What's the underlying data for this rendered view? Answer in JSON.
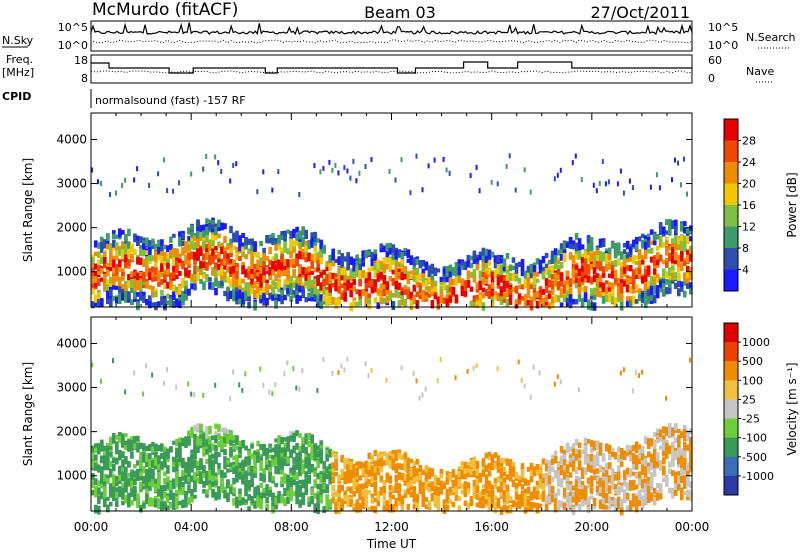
{
  "header": {
    "station": "McMurdo (fitACF)",
    "beam": "Beam 03",
    "date": "27/Oct/2011"
  },
  "summary": {
    "nsky_label": "N.Sky",
    "nsky_ticks": [
      "10^5",
      "10^0"
    ],
    "nsearch_label": "N.Search",
    "nsearch_ticks": [
      "10^5",
      "10^0"
    ],
    "freq_label_1": "Freq.",
    "freq_label_2": "[MHz]",
    "freq_ticks": [
      "18",
      "8"
    ],
    "nave_label": "Nave",
    "nave_ticks": [
      "60",
      "0"
    ],
    "cpid_label": "CPID",
    "cpid_text": "normalsound (fast) -157 RF"
  },
  "chart_data": [
    {
      "type": "heatmap",
      "name": "power",
      "xlabel": "Time UT",
      "ylabel": "Slant Range [km]",
      "xlim": [
        0,
        24
      ],
      "ylim": [
        200,
        4600
      ],
      "x_ticks": [
        "00:00",
        "04:00",
        "08:00",
        "12:00",
        "16:00",
        "20:00",
        "00:00"
      ],
      "y_ticks": [
        1000,
        2000,
        3000,
        4000
      ],
      "colorbar": {
        "label": "Power [dB]",
        "ticks": [
          "4",
          "8",
          "12",
          "16",
          "20",
          "24",
          "28"
        ],
        "colors": [
          "#1a1aff",
          "#2c4fb0",
          "#3e9a66",
          "#7fc040",
          "#f2c800",
          "#f08c00",
          "#f04800",
          "#e60000"
        ]
      }
    },
    {
      "type": "heatmap",
      "name": "velocity",
      "xlabel": "Time UT",
      "ylabel": "Slant Range [km]",
      "xlim": [
        0,
        24
      ],
      "ylim": [
        200,
        4600
      ],
      "x_ticks": [
        "00:00",
        "04:00",
        "08:00",
        "12:00",
        "16:00",
        "20:00",
        "00:00"
      ],
      "y_ticks": [
        1000,
        2000,
        3000,
        4000
      ],
      "colorbar": {
        "label": "Velocity [m s⁻¹]",
        "ticks": [
          "1000",
          "500",
          "100",
          "25",
          "-25",
          "-100",
          "-500",
          "-1000"
        ],
        "colors": [
          "#2a3aa8",
          "#3b6fb4",
          "#3a9a58",
          "#6ccf3a",
          "#c6c6c6",
          "#f0c040",
          "#f08c00",
          "#f04000",
          "#e00000"
        ]
      }
    }
  ]
}
